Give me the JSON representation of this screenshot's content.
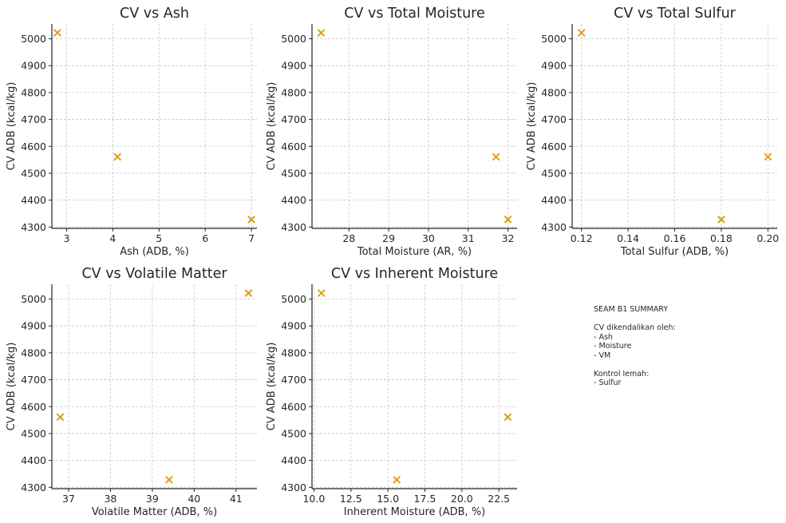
{
  "chart_data": [
    {
      "type": "scatter",
      "title": "CV vs Ash",
      "xlabel": "Ash (ADB, %)",
      "ylabel": "CV ADB (kcal/kg)",
      "x": [
        2.8,
        4.1,
        7.0
      ],
      "y": [
        5022,
        4561,
        4328
      ],
      "xlim": [
        2.68,
        7.12
      ],
      "ylim": [
        4295,
        5055
      ],
      "xticks": [
        3,
        4,
        5,
        6,
        7
      ],
      "xtick_labels": [
        "3",
        "4",
        "5",
        "6",
        "7"
      ],
      "yticks": [
        4300,
        4400,
        4500,
        4600,
        4700,
        4800,
        4900,
        5000
      ],
      "ytick_labels": [
        "4300",
        "4400",
        "4500",
        "4600",
        "4700",
        "4800",
        "4900",
        "5000"
      ],
      "grid": true,
      "marker": "x",
      "color": "#d9a11a"
    },
    {
      "type": "scatter",
      "title": "CV vs Total Moisture",
      "xlabel": "Total Moisture (AR, %)",
      "ylabel": "CV ADB (kcal/kg)",
      "x": [
        27.3,
        31.7,
        32.0
      ],
      "y": [
        5022,
        4561,
        4328
      ],
      "xlim": [
        27.07,
        32.23
      ],
      "ylim": [
        4295,
        5055
      ],
      "xticks": [
        28,
        29,
        30,
        31,
        32
      ],
      "xtick_labels": [
        "28",
        "29",
        "30",
        "31",
        "32"
      ],
      "yticks": [
        4300,
        4400,
        4500,
        4600,
        4700,
        4800,
        4900,
        5000
      ],
      "ytick_labels": [
        "4300",
        "4400",
        "4500",
        "4600",
        "4700",
        "4800",
        "4900",
        "5000"
      ],
      "grid": true,
      "marker": "x",
      "color": "#d9a11a"
    },
    {
      "type": "scatter",
      "title": "CV vs Total Sulfur",
      "xlabel": "Total Sulfur (ADB, %)",
      "ylabel": "CV ADB (kcal/kg)",
      "x": [
        0.12,
        0.18,
        0.2
      ],
      "y": [
        5022,
        4328,
        4561
      ],
      "xlim": [
        0.116,
        0.204
      ],
      "ylim": [
        4295,
        5055
      ],
      "xticks": [
        0.12,
        0.14,
        0.16,
        0.18,
        0.2
      ],
      "xtick_labels": [
        "0.12",
        "0.14",
        "0.16",
        "0.18",
        "0.20"
      ],
      "yticks": [
        4300,
        4400,
        4500,
        4600,
        4700,
        4800,
        4900,
        5000
      ],
      "ytick_labels": [
        "4300",
        "4400",
        "4500",
        "4600",
        "4700",
        "4800",
        "4900",
        "5000"
      ],
      "grid": true,
      "marker": "x",
      "color": "#d9a11a"
    },
    {
      "type": "scatter",
      "title": "CV vs Volatile Matter",
      "xlabel": "Volatile Matter (ADB, %)",
      "ylabel": "CV ADB (kcal/kg)",
      "x": [
        36.8,
        39.4,
        41.3
      ],
      "y": [
        4561,
        4328,
        5022
      ],
      "xlim": [
        36.6,
        41.5
      ],
      "ylim": [
        4295,
        5055
      ],
      "xticks": [
        37,
        38,
        39,
        40,
        41
      ],
      "xtick_labels": [
        "37",
        "38",
        "39",
        "40",
        "41"
      ],
      "yticks": [
        4300,
        4400,
        4500,
        4600,
        4700,
        4800,
        4900,
        5000
      ],
      "ytick_labels": [
        "4300",
        "4400",
        "4500",
        "4600",
        "4700",
        "4800",
        "4900",
        "5000"
      ],
      "grid": true,
      "marker": "x",
      "color": "#d9a11a"
    },
    {
      "type": "scatter",
      "title": "CV vs Inherent Moisture",
      "xlabel": "Inherent Moisture (ADB, %)",
      "ylabel": "CV ADB (kcal/kg)",
      "x": [
        10.5,
        15.6,
        23.1
      ],
      "y": [
        5022,
        4328,
        4561
      ],
      "xlim": [
        9.87,
        23.73
      ],
      "ylim": [
        4295,
        5055
      ],
      "xticks": [
        10.0,
        12.5,
        15.0,
        17.5,
        20.0,
        22.5
      ],
      "xtick_labels": [
        "10.0",
        "12.5",
        "15.0",
        "17.5",
        "20.0",
        "22.5"
      ],
      "yticks": [
        4300,
        4400,
        4500,
        4600,
        4700,
        4800,
        4900,
        5000
      ],
      "ytick_labels": [
        "4300",
        "4400",
        "4500",
        "4600",
        "4700",
        "4800",
        "4900",
        "5000"
      ],
      "grid": true,
      "marker": "x",
      "color": "#d9a11a"
    }
  ],
  "summary": {
    "title": "SEAM B1 SUMMARY",
    "controlled_heading": "CV dikendalikan oleh:",
    "controlled_items": [
      "- Ash",
      "- Moisture",
      "- VM"
    ],
    "weak_heading": "Kontrol lemah:",
    "weak_items": [
      "- Sulfur"
    ]
  }
}
